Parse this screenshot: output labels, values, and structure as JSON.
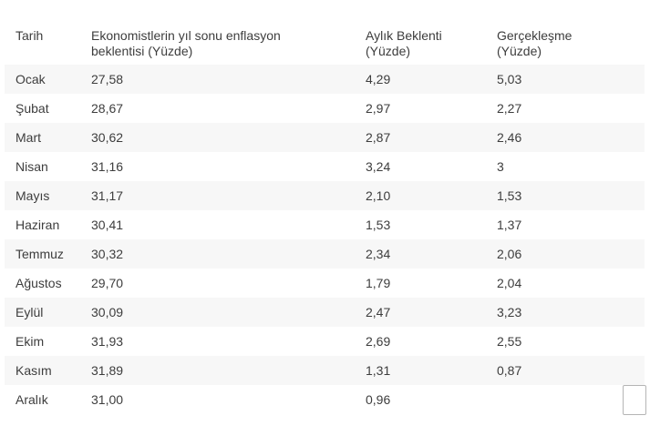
{
  "colors": {
    "background": "#ffffff",
    "row_stripe": "#f7f7f7",
    "text": "#3d3d3d",
    "corner_box_border": "#b5b5b5"
  },
  "chart_data": {
    "type": "table",
    "title": "",
    "columns": [
      "Tarih",
      "Ekonomistlerin yıl sonu enflasyon beklentisi (Yüzde)",
      "Aylık Beklenti (Yüzde)",
      "Gerçekleşme (Yüzde)"
    ],
    "rows": [
      [
        "Ocak",
        "27,58",
        "4,29",
        "5,03"
      ],
      [
        "Şubat",
        "28,67",
        "2,97",
        "2,27"
      ],
      [
        "Mart",
        "30,62",
        "2,87",
        "2,46"
      ],
      [
        "Nisan",
        "31,16",
        "3,24",
        "3"
      ],
      [
        "Mayıs",
        "31,17",
        "2,10",
        "1,53"
      ],
      [
        "Haziran",
        "30,41",
        "1,53",
        "1,37"
      ],
      [
        "Temmuz",
        "30,32",
        "2,34",
        "2,06"
      ],
      [
        "Ağustos",
        "29,70",
        "1,79",
        "2,04"
      ],
      [
        "Eylül",
        "30,09",
        "2,47",
        "3,23"
      ],
      [
        "Ekim",
        "31,93",
        "2,69",
        "2,55"
      ],
      [
        "Kasım",
        "31,89",
        "1,31",
        "0,87"
      ],
      [
        "Aralık",
        "31,00",
        "0,96",
        ""
      ]
    ]
  }
}
